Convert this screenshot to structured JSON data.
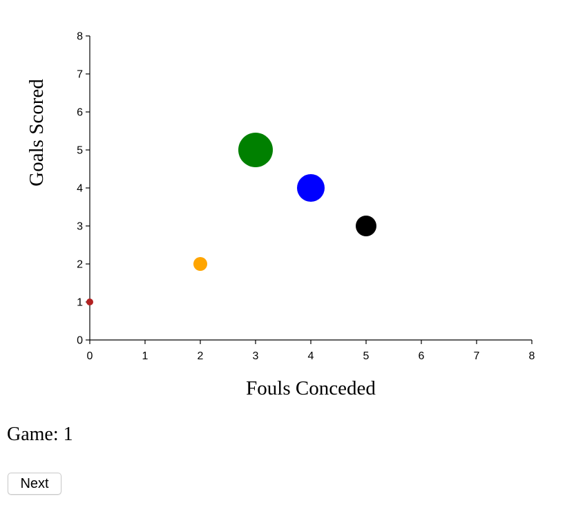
{
  "chart_data": {
    "type": "scatter",
    "title": "",
    "xlabel": "Fouls Conceded",
    "ylabel": "Goals Scored",
    "xlim": [
      0,
      8
    ],
    "ylim": [
      0,
      8
    ],
    "xticks": [
      0,
      1,
      2,
      3,
      4,
      5,
      6,
      7,
      8
    ],
    "yticks": [
      0,
      1,
      2,
      3,
      4,
      5,
      6,
      7,
      8
    ],
    "grid": false,
    "points": [
      {
        "x": 0,
        "y": 1,
        "color": "#b22222"
      },
      {
        "x": 2,
        "y": 2,
        "color": "#ffa500"
      },
      {
        "x": 3,
        "y": 5,
        "color": "#008000"
      },
      {
        "x": 4,
        "y": 4,
        "color": "#0000ff"
      },
      {
        "x": 5,
        "y": 3,
        "color": "#000000"
      }
    ]
  },
  "game": {
    "label": "Game: 1"
  },
  "controls": {
    "next_label": "Next"
  }
}
